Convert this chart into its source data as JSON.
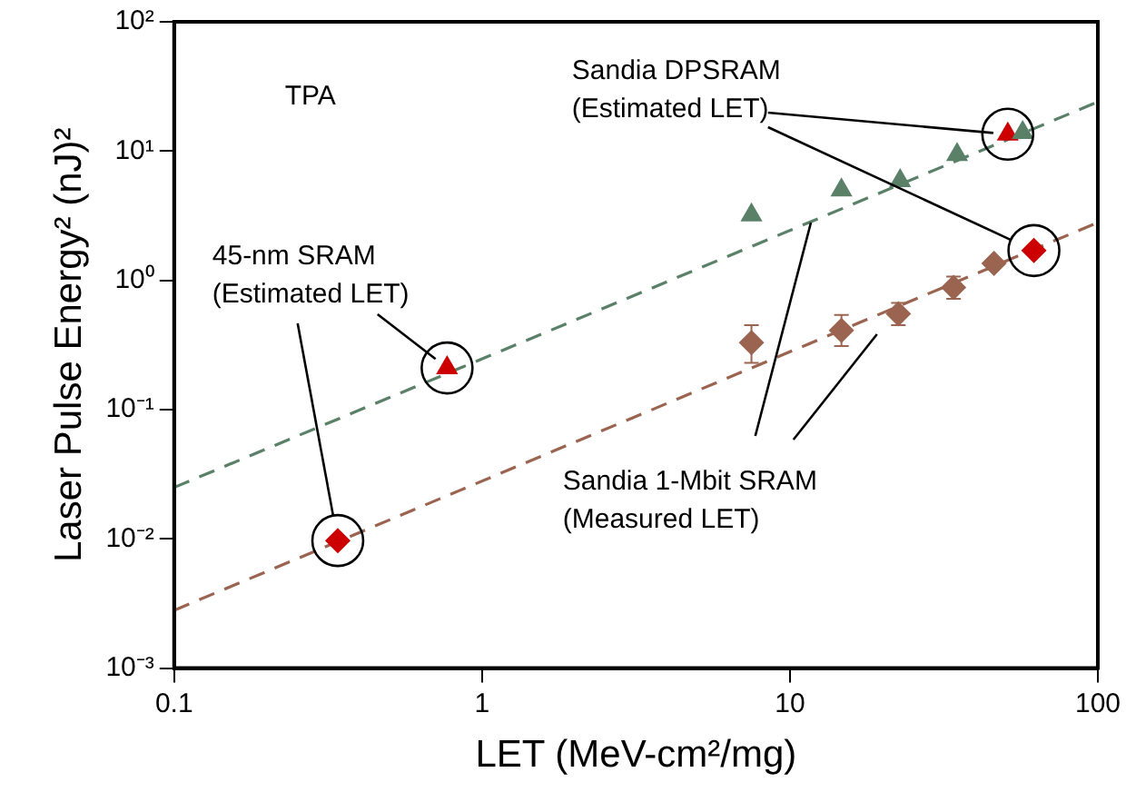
{
  "chart_data": {
    "type": "scatter",
    "xlabel": "LET (MeV-cm²/mg)",
    "ylabel": "Laser Pulse Energy² (nJ)²",
    "log": "xy",
    "grid": false,
    "legend": false,
    "xlim": [
      0.1,
      100
    ],
    "xticks": [
      0.1,
      1,
      10,
      100
    ],
    "ylim": [
      0.001,
      100
    ],
    "yticks": [
      {
        "value": 0.001,
        "label": "10⁻³"
      },
      {
        "value": 0.01,
        "label": "10⁻²"
      },
      {
        "value": 0.1,
        "label": "10⁻¹"
      },
      {
        "value": 1,
        "label": "10⁰"
      },
      {
        "value": 10,
        "label": "10¹"
      },
      {
        "value": 100,
        "label": "10²"
      }
    ],
    "series": [
      {
        "type": "line",
        "color": "#5a8068",
        "line_style": "dashed",
        "marker": "none",
        "x": [
          0.1,
          100
        ],
        "values": [
          0.025,
          24
        ]
      },
      {
        "type": "line",
        "color": "#9a6450",
        "line_style": "dashed",
        "marker": "none",
        "x": [
          0.1,
          100
        ],
        "values": [
          0.0028,
          2.8
        ]
      },
      {
        "type": "scatter",
        "color": "#5a8068",
        "marker": "triangle",
        "x": [
          7.5,
          14.7,
          22.8,
          34.9,
          57
        ],
        "values": [
          3.2,
          5.0,
          5.9,
          9.4,
          13.9
        ]
      },
      {
        "type": "scatter",
        "color": "#9a6450",
        "marker": "diamond",
        "x": [
          7.5,
          14.7,
          22.5,
          34,
          46
        ],
        "values": [
          0.33,
          0.41,
          0.55,
          0.88,
          1.35
        ],
        "errors": [
          [
            0.23,
            0.45
          ],
          [
            0.31,
            0.54
          ],
          [
            0.45,
            0.67
          ],
          [
            0.72,
            1.07
          ],
          null
        ]
      },
      {
        "type": "scatter",
        "color": "#cc0000",
        "marker": "triangle",
        "x": [
          0.77,
          51
        ],
        "values": [
          0.21,
          13.5
        ]
      },
      {
        "type": "scatter",
        "color": "#cc0000",
        "marker": "diamond",
        "x": [
          0.34,
          62
        ],
        "values": [
          0.0097,
          1.7
        ]
      }
    ],
    "annotations": [
      "TPA",
      {
        "text": "45-nm SRAM\n(Estimated LET)",
        "x": 0.77,
        "y": 0.21
      },
      {
        "text": "Sandia DPSRAM\n(Estimated LET)",
        "x": 51,
        "y": 13.5
      },
      {
        "text": "Sandia 1-Mbit SRAM\n(Measured LET)",
        "x": 11.7,
        "y": 2.8
      }
    ]
  }
}
